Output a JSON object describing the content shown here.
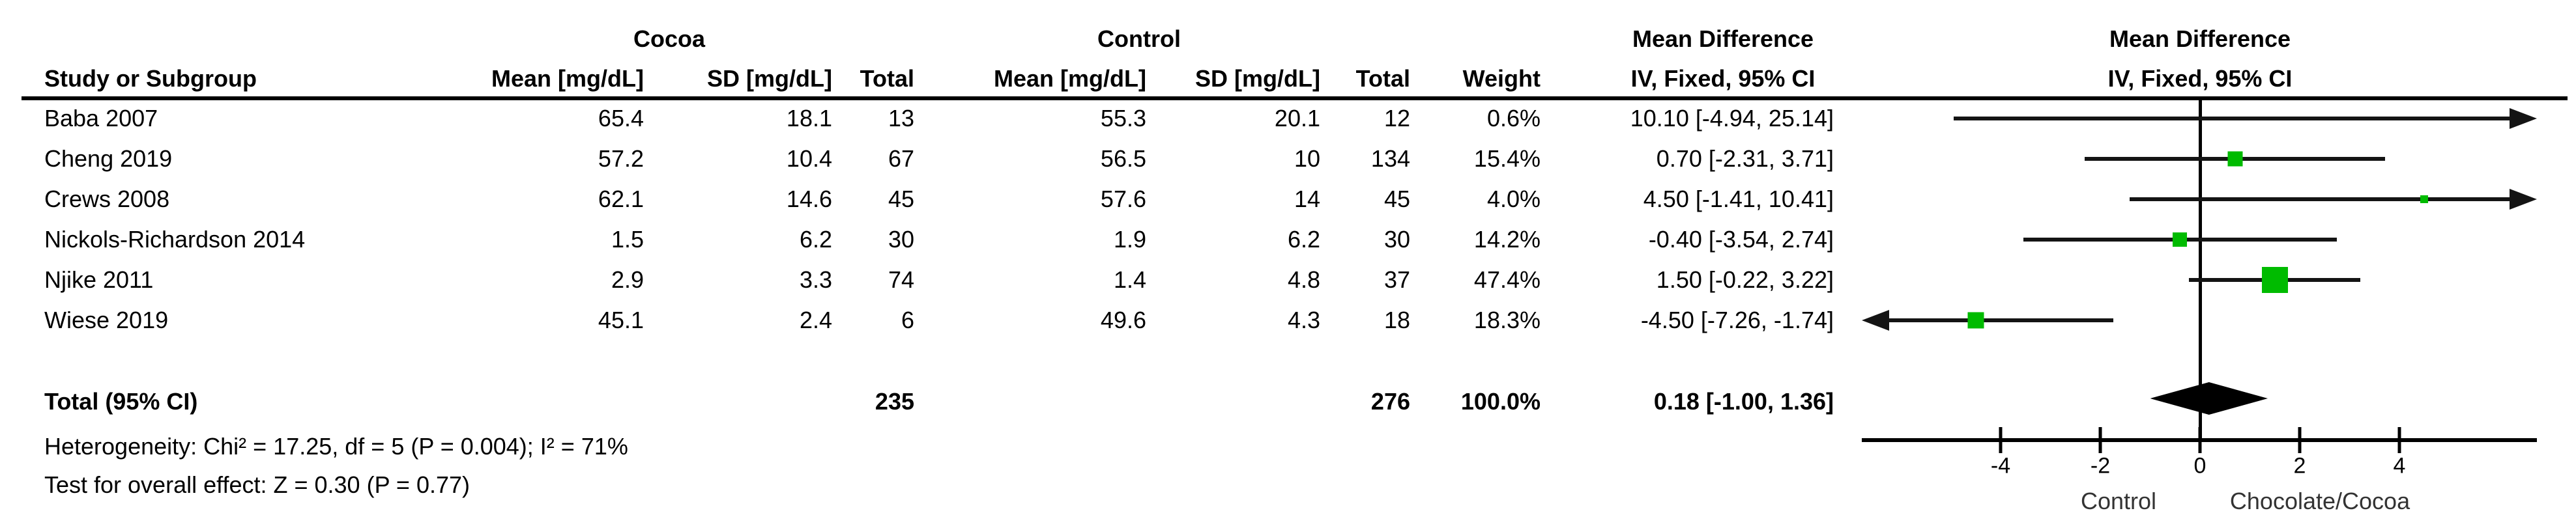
{
  "chart_data": {
    "type": "forest",
    "effect_measure": "Mean Difference",
    "method": "IV, Fixed, 95% CI",
    "group_labels": {
      "experimental": "Cocoa",
      "control": "Control"
    },
    "column_headers": {
      "study": "Study or Subgroup",
      "mean": "Mean [mg/dL]",
      "sd": "SD [mg/dL]",
      "total": "Total",
      "weight": "Weight",
      "effect": "Mean Difference",
      "ci": "IV, Fixed, 95% CI"
    },
    "studies": [
      {
        "name": "Baba 2007",
        "mean1": "65.4",
        "sd1": "18.1",
        "n1": "13",
        "mean2": "55.3",
        "sd2": "20.1",
        "n2": "12",
        "weight": "0.6%",
        "ci_text": "10.10 [-4.94, 25.14]",
        "est": 10.1,
        "lo": -4.94,
        "hi": 25.14,
        "weight_pct": 0.6
      },
      {
        "name": "Cheng 2019",
        "mean1": "57.2",
        "sd1": "10.4",
        "n1": "67",
        "mean2": "56.5",
        "sd2": "10",
        "n2": "134",
        "weight": "15.4%",
        "ci_text": "0.70 [-2.31, 3.71]",
        "est": 0.7,
        "lo": -2.31,
        "hi": 3.71,
        "weight_pct": 15.4
      },
      {
        "name": "Crews 2008",
        "mean1": "62.1",
        "sd1": "14.6",
        "n1": "45",
        "mean2": "57.6",
        "sd2": "14",
        "n2": "45",
        "weight": "4.0%",
        "ci_text": "4.50 [-1.41, 10.41]",
        "est": 4.5,
        "lo": -1.41,
        "hi": 10.41,
        "weight_pct": 4.0
      },
      {
        "name": "Nickols-Richardson 2014",
        "mean1": "1.5",
        "sd1": "6.2",
        "n1": "30",
        "mean2": "1.9",
        "sd2": "6.2",
        "n2": "30",
        "weight": "14.2%",
        "ci_text": "-0.40 [-3.54, 2.74]",
        "est": -0.4,
        "lo": -3.54,
        "hi": 2.74,
        "weight_pct": 14.2
      },
      {
        "name": "Njike 2011",
        "mean1": "2.9",
        "sd1": "3.3",
        "n1": "74",
        "mean2": "1.4",
        "sd2": "4.8",
        "n2": "37",
        "weight": "47.4%",
        "ci_text": "1.50 [-0.22, 3.22]",
        "est": 1.5,
        "lo": -0.22,
        "hi": 3.22,
        "weight_pct": 47.4
      },
      {
        "name": "Wiese 2019",
        "mean1": "45.1",
        "sd1": "2.4",
        "n1": "6",
        "mean2": "49.6",
        "sd2": "4.3",
        "n2": "18",
        "weight": "18.3%",
        "ci_text": "-4.50 [-7.26, -1.74]",
        "est": -4.5,
        "lo": -7.26,
        "hi": -1.74,
        "weight_pct": 18.3
      }
    ],
    "total": {
      "label": "Total (95% CI)",
      "n1": "235",
      "n2": "276",
      "weight": "100.0%",
      "ci_text": "0.18 [-1.00, 1.36]",
      "est": 0.18,
      "lo": -1.0,
      "hi": 1.36
    },
    "heterogeneity": "Heterogeneity: Chi² = 17.25, df = 5 (P = 0.004); I² = 71%",
    "overall_effect": "Test for overall effect: Z = 0.30 (P = 0.77)",
    "axis": {
      "ticks": [
        -4,
        -2,
        0,
        2,
        4
      ],
      "min": -6.8,
      "max": 6.8,
      "label_left": "Control",
      "label_right": "Chocolate/Cocoa"
    },
    "colors": {
      "marker_green": "#00BB00",
      "diamond_black": "#000000"
    }
  }
}
